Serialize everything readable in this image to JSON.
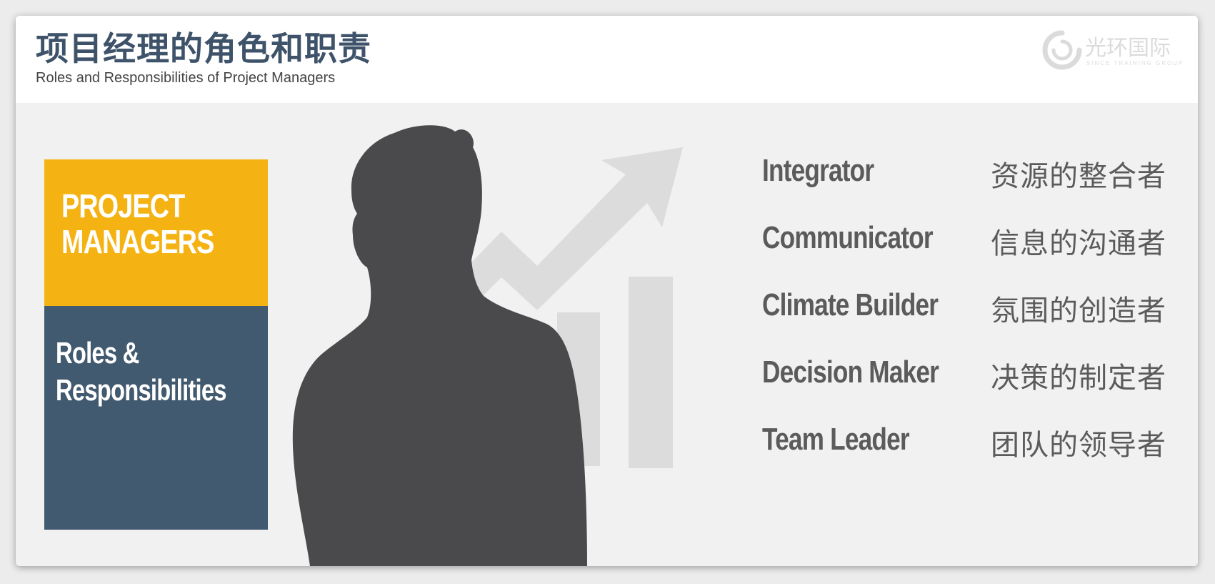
{
  "header": {
    "title_zh": "项目经理的角色和职责",
    "title_en": "Roles and Responsibilities of Project Managers"
  },
  "logo": {
    "text": "光环国际",
    "subtext": "SINCE TRAINING GROUP"
  },
  "card": {
    "title": "PROJECT\nMANAGERS",
    "subtitle": "Roles &\nResponsibilities"
  },
  "roles": [
    {
      "en": "Integrator",
      "zh": "资源的整合者"
    },
    {
      "en": "Communicator",
      "zh": "信息的沟通者"
    },
    {
      "en": "Climate Builder",
      "zh": "氛围的创造者"
    },
    {
      "en": "Decision Maker",
      "zh": "决策的制定者"
    },
    {
      "en": "Team Leader",
      "zh": "团队的领导者"
    }
  ],
  "colors": {
    "title": "#3e536a",
    "card_top": "#f5b313",
    "card_bottom": "#425a6f",
    "role_text": "#5b5b5b",
    "silhouette": "#4a4a4c",
    "growth_graphic": "#dcdcdc"
  },
  "icons": {
    "logo": "swirl-logo-icon",
    "graphic": "growth-chart-arrow-icon",
    "person": "person-silhouette"
  }
}
